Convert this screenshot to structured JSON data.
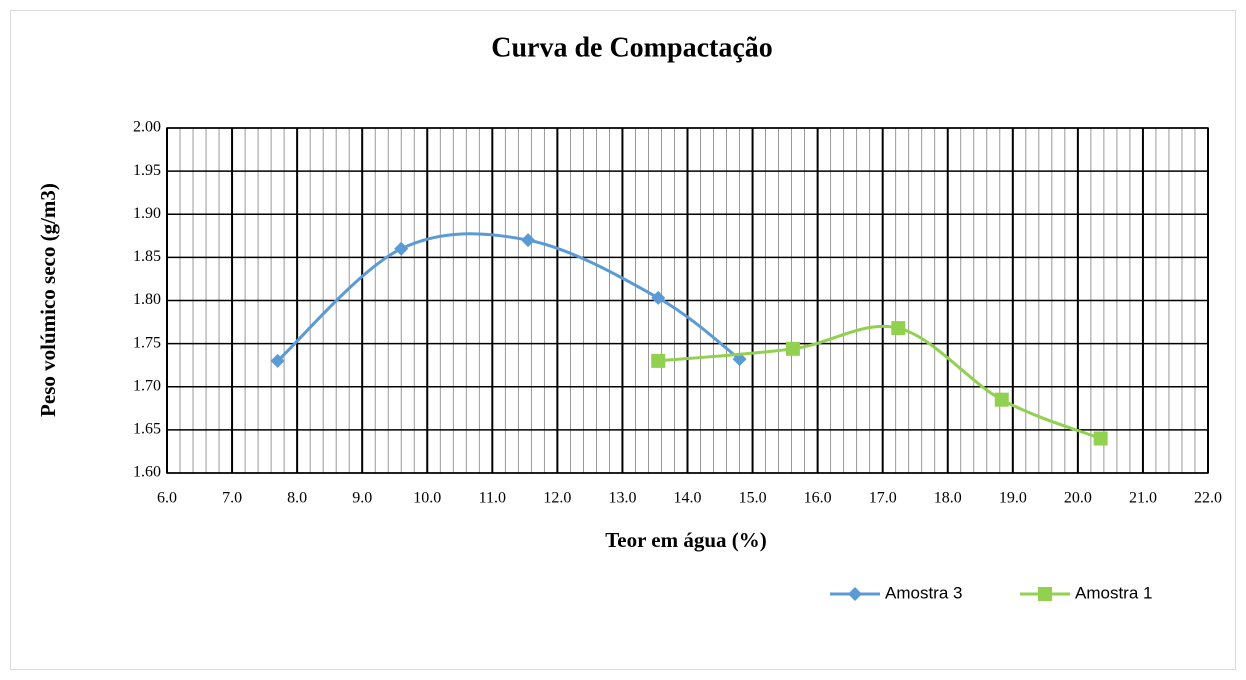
{
  "chart_data": {
    "type": "line",
    "smooth": true,
    "markers": true,
    "title": "Curva de Compactação",
    "xlabel": "Teor em água (%)",
    "ylabel": "Peso volúmico seco (g/m3)",
    "xlim": [
      6,
      22
    ],
    "xticks": [
      {
        "value": 6,
        "label": "6.0"
      },
      {
        "value": 7,
        "label": "7.0"
      },
      {
        "value": 8,
        "label": "8.0"
      },
      {
        "value": 9,
        "label": "9.0"
      },
      {
        "value": 10,
        "label": "10.0"
      },
      {
        "value": 11,
        "label": "11.0"
      },
      {
        "value": 12,
        "label": "12.0"
      },
      {
        "value": 13,
        "label": "13.0"
      },
      {
        "value": 14,
        "label": "14.0"
      },
      {
        "value": 15,
        "label": "15.0"
      },
      {
        "value": 16,
        "label": "16.0"
      },
      {
        "value": 17,
        "label": "17.0"
      },
      {
        "value": 18,
        "label": "18.0"
      },
      {
        "value": 19,
        "label": "19.0"
      },
      {
        "value": 20,
        "label": "20.0"
      },
      {
        "value": 21,
        "label": "21.0"
      },
      {
        "value": 22,
        "label": "22.0"
      }
    ],
    "ylim": [
      1.6,
      2.0
    ],
    "yticks": [
      {
        "value": 1.6,
        "label": "1.60"
      },
      {
        "value": 1.65,
        "label": "1.65"
      },
      {
        "value": 1.7,
        "label": "1.70"
      },
      {
        "value": 1.75,
        "label": "1.75"
      },
      {
        "value": 1.8,
        "label": "1.80"
      },
      {
        "value": 1.85,
        "label": "1.85"
      },
      {
        "value": 1.9,
        "label": "1.90"
      },
      {
        "value": 1.95,
        "label": "1.95"
      },
      {
        "value": 2.0,
        "label": "2.00"
      }
    ],
    "grid": true,
    "minor_grid": true,
    "legend": "bottom",
    "series": [
      {
        "name": "Amostra 3",
        "color": "#5b9bd5",
        "marker": "diamond",
        "x": [
          7.7,
          9.6,
          11.55,
          13.55,
          14.8
        ],
        "values": [
          1.73,
          1.86,
          1.87,
          1.803,
          1.732
        ]
      },
      {
        "name": "Amostra 1",
        "color": "#92d050",
        "marker": "square",
        "x": [
          13.55,
          15.62,
          17.24,
          18.83,
          20.35
        ],
        "values": [
          1.73,
          1.744,
          1.768,
          1.685,
          1.64
        ]
      }
    ]
  }
}
